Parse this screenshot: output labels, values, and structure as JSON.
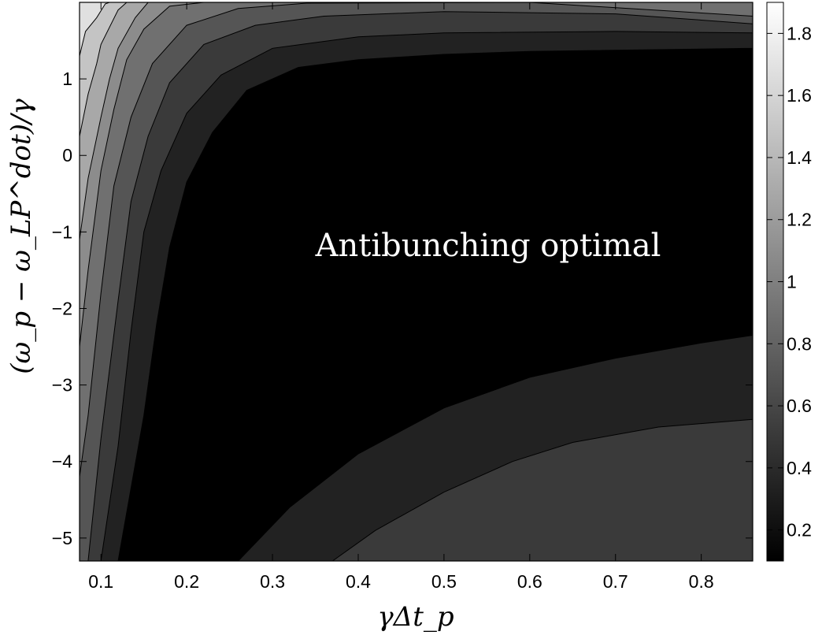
{
  "chart_data": {
    "type": "heatmap",
    "subtype": "filled-contour",
    "colormap": "gray",
    "xlabel": "γΔt_p",
    "ylabel": "(ω_p − ω_LP^dot)/γ",
    "xlim": [
      0.075,
      0.86
    ],
    "ylim": [
      -5.3,
      2.0
    ],
    "x_ticks": [
      0.1,
      0.2,
      0.3,
      0.4,
      0.5,
      0.6,
      0.7,
      0.8
    ],
    "x_tick_labels": [
      "0.1",
      "0.2",
      "0.3",
      "0.4",
      "0.5",
      "0.6",
      "0.7",
      "0.8"
    ],
    "y_ticks": [
      1,
      0,
      -1,
      -2,
      -3,
      -4,
      -5
    ],
    "y_tick_labels": [
      "1",
      "0",
      "−1",
      "−2",
      "−3",
      "−4",
      "−5"
    ],
    "colorbar": {
      "range": [
        0.1,
        1.9
      ],
      "ticks": [
        1.8,
        1.6,
        1.4,
        1.2,
        1.0,
        0.8,
        0.6,
        0.4,
        0.2
      ],
      "tick_labels": [
        "1.8",
        "1.6",
        "1.4",
        "1.2",
        "1",
        "0.8",
        "0.6",
        "0.4",
        "0.2"
      ]
    },
    "contour_levels": [
      {
        "value": 0.3,
        "color": "#000000",
        "boundary": [
          [
            0.168,
            -5.3
          ],
          [
            0.19,
            -3.5
          ],
          [
            0.21,
            -2.6
          ],
          [
            0.235,
            -1.2
          ],
          [
            0.28,
            -0.4
          ],
          [
            0.33,
            0.25
          ],
          [
            0.4,
            0.7
          ],
          [
            0.48,
            0.88
          ],
          [
            0.6,
            0.93
          ],
          [
            0.75,
            0.96
          ],
          [
            0.86,
            0.97
          ]
        ]
      },
      {
        "value": 0.45,
        "color": "#222222",
        "boundary": [
          [
            0.12,
            -5.3
          ],
          [
            0.15,
            -3.4
          ],
          [
            0.165,
            -2.2
          ],
          [
            0.18,
            -1.2
          ],
          [
            0.2,
            -0.35
          ],
          [
            0.23,
            0.3
          ],
          [
            0.27,
            0.85
          ],
          [
            0.33,
            1.15
          ],
          [
            0.4,
            1.25
          ],
          [
            0.5,
            1.32
          ],
          [
            0.6,
            1.36
          ],
          [
            0.86,
            1.4
          ]
        ]
      },
      {
        "value": 0.6,
        "color": "#3a3a3a",
        "boundary": [
          [
            0.1,
            -5.3
          ],
          [
            0.12,
            -3.8
          ],
          [
            0.135,
            -2.3
          ],
          [
            0.15,
            -1.0
          ],
          [
            0.17,
            -0.2
          ],
          [
            0.2,
            0.55
          ],
          [
            0.24,
            1.05
          ],
          [
            0.3,
            1.4
          ],
          [
            0.4,
            1.55
          ],
          [
            0.5,
            1.6
          ],
          [
            0.7,
            1.62
          ],
          [
            0.86,
            1.6
          ]
        ]
      },
      {
        "value": 0.8,
        "color": "#555555",
        "boundary": [
          [
            0.085,
            -5.3
          ],
          [
            0.1,
            -3.7
          ],
          [
            0.12,
            -1.9
          ],
          [
            0.135,
            -0.6
          ],
          [
            0.155,
            0.25
          ],
          [
            0.18,
            0.95
          ],
          [
            0.22,
            1.45
          ],
          [
            0.28,
            1.7
          ],
          [
            0.36,
            1.82
          ],
          [
            0.5,
            1.88
          ],
          [
            0.7,
            1.85
          ],
          [
            0.86,
            1.72
          ]
        ]
      },
      {
        "value": 1.0,
        "color": "#707070",
        "boundary": [
          [
            0.075,
            -4.2
          ],
          [
            0.085,
            -3.4
          ],
          [
            0.1,
            -1.8
          ],
          [
            0.115,
            -0.4
          ],
          [
            0.135,
            0.5
          ],
          [
            0.16,
            1.2
          ],
          [
            0.2,
            1.7
          ],
          [
            0.26,
            1.92
          ],
          [
            0.34,
            1.99
          ],
          [
            0.6,
            2.0
          ],
          [
            0.86,
            1.82
          ]
        ]
      },
      {
        "value": 1.2,
        "color": "#8c8c8c",
        "boundary": [
          [
            0.075,
            -2.5
          ],
          [
            0.085,
            -1.5
          ],
          [
            0.1,
            -0.2
          ],
          [
            0.115,
            0.6
          ],
          [
            0.13,
            1.25
          ],
          [
            0.15,
            1.65
          ],
          [
            0.18,
            1.95
          ],
          [
            0.22,
            2.0
          ],
          [
            0.86,
            2.0
          ]
        ]
      },
      {
        "value": 1.4,
        "color": "#a8a8a8",
        "boundary": [
          [
            0.075,
            -1.1
          ],
          [
            0.085,
            -0.3
          ],
          [
            0.1,
            0.5
          ],
          [
            0.11,
            1.0
          ],
          [
            0.12,
            1.4
          ],
          [
            0.14,
            1.8
          ],
          [
            0.155,
            2.0
          ],
          [
            0.86,
            2.0
          ]
        ]
      },
      {
        "value": 1.6,
        "color": "#c4c4c4",
        "boundary": [
          [
            0.075,
            0.25
          ],
          [
            0.085,
            0.8
          ],
          [
            0.095,
            1.2
          ],
          [
            0.1,
            1.45
          ],
          [
            0.12,
            1.9
          ],
          [
            0.13,
            2.0
          ],
          [
            0.86,
            2.0
          ]
        ]
      },
      {
        "value": 1.8,
        "color": "#e0e0e0",
        "boundary": [
          [
            0.075,
            1.3
          ],
          [
            0.082,
            1.62
          ],
          [
            0.095,
            1.8
          ],
          [
            0.105,
            1.98
          ],
          [
            0.11,
            2.0
          ],
          [
            0.86,
            2.0
          ]
        ]
      },
      {
        "value": 0.45,
        "color": "#222222",
        "region": "lower-right",
        "boundary": [
          [
            0.26,
            -5.3
          ],
          [
            0.32,
            -4.6
          ],
          [
            0.4,
            -3.9
          ],
          [
            0.5,
            -3.3
          ],
          [
            0.6,
            -2.9
          ],
          [
            0.7,
            -2.65
          ],
          [
            0.8,
            -2.45
          ],
          [
            0.86,
            -2.35
          ]
        ]
      },
      {
        "value": 0.6,
        "color": "#3a3a3a",
        "region": "lower-right",
        "boundary": [
          [
            0.37,
            -5.3
          ],
          [
            0.42,
            -4.9
          ],
          [
            0.5,
            -4.4
          ],
          [
            0.58,
            -4.0
          ],
          [
            0.65,
            -3.75
          ],
          [
            0.75,
            -3.55
          ],
          [
            0.86,
            -3.45
          ]
        ]
      }
    ],
    "annotations": [
      "Antibunching optimal"
    ]
  }
}
